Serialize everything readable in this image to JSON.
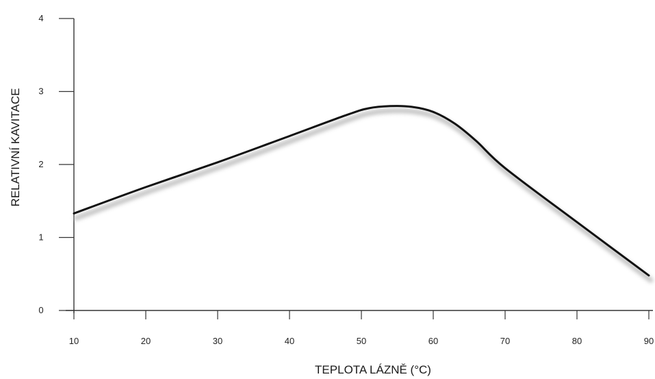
{
  "chart_data": {
    "type": "line",
    "title": "",
    "xlabel": "TEPLOTA LÁZNĚ (°C)",
    "ylabel": "RELATIVNÍ KAVITACE",
    "xlim": [
      10,
      90
    ],
    "ylim": [
      0,
      4
    ],
    "xticks": [
      10,
      20,
      30,
      40,
      50,
      60,
      70,
      80,
      90
    ],
    "yticks": [
      0,
      1,
      2,
      3,
      4
    ],
    "grid": false,
    "legend": "none",
    "line_color": "#111111",
    "shadow_color": "#bdbdbd",
    "series": [
      {
        "x": [
          10,
          20,
          30,
          40,
          48,
          51,
          54,
          57,
          60,
          63,
          66,
          70,
          80,
          90
        ],
        "y": [
          1.33,
          1.69,
          2.03,
          2.39,
          2.68,
          2.77,
          2.8,
          2.79,
          2.72,
          2.56,
          2.32,
          1.95,
          1.21,
          0.48
        ]
      }
    ]
  }
}
